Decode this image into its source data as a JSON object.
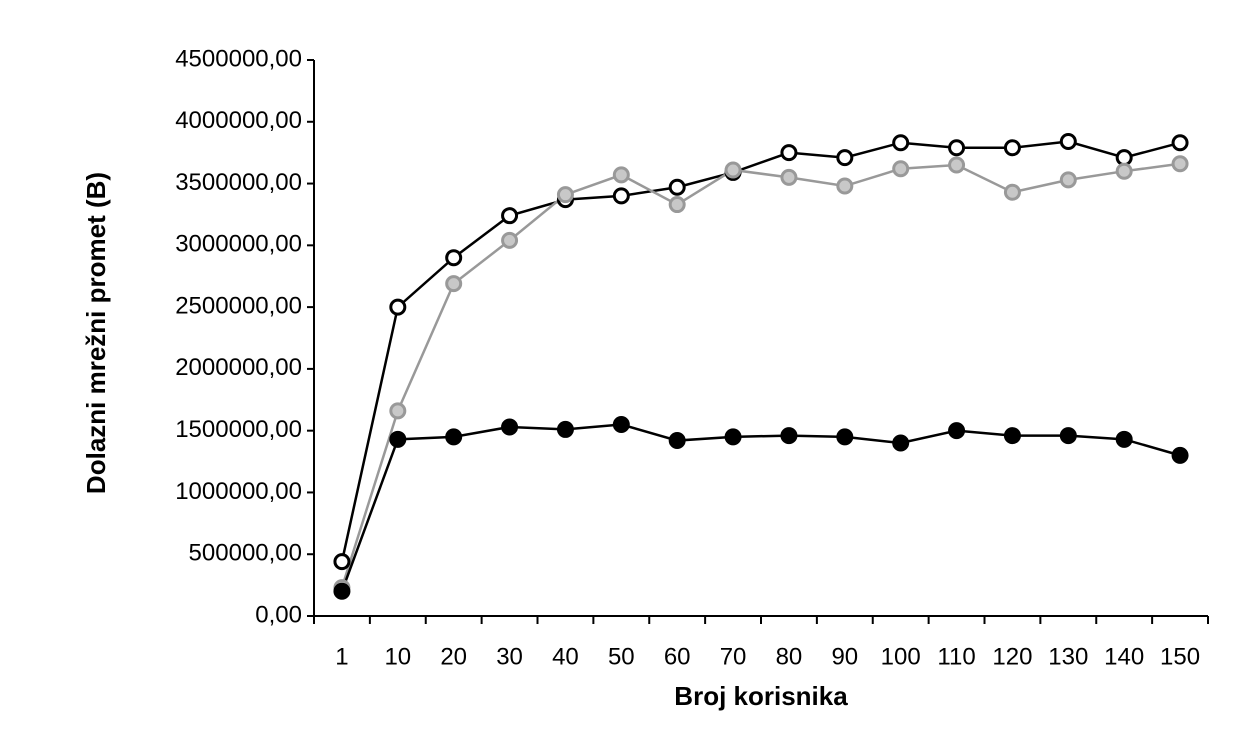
{
  "chart_data": {
    "type": "line",
    "x_label": "Broj korisnika",
    "y_label": "Dolazni mrežni promet (B)",
    "categories": [
      "1",
      "10",
      "20",
      "30",
      "40",
      "50",
      "60",
      "70",
      "80",
      "90",
      "100",
      "110",
      "120",
      "130",
      "140",
      "150"
    ],
    "series": [
      {
        "color": "#000000",
        "marker_fill": "#ffffff",
        "values": [
          440000,
          2500000,
          2900000,
          3240000,
          3370000,
          3400000,
          3470000,
          3590000,
          3750000,
          3710000,
          3830000,
          3790000,
          3790000,
          3840000,
          3710000,
          3830000
        ]
      },
      {
        "color": "#999999",
        "marker_fill": "#c8c8c8",
        "values": [
          230000,
          1660000,
          2690000,
          3040000,
          3410000,
          3570000,
          3330000,
          3610000,
          3550000,
          3480000,
          3620000,
          3650000,
          3430000,
          3530000,
          3600000,
          3660000
        ]
      },
      {
        "color": "#000000",
        "marker_fill": "#000000",
        "values": [
          200000,
          1430000,
          1450000,
          1530000,
          1510000,
          1550000,
          1420000,
          1450000,
          1460000,
          1450000,
          1400000,
          1500000,
          1460000,
          1460000,
          1430000,
          1300000
        ]
      }
    ],
    "ylim": [
      0,
      4500000
    ],
    "yticks": [
      {
        "value": 0,
        "label": "0,00"
      },
      {
        "value": 500000,
        "label": "500000,00"
      },
      {
        "value": 1000000,
        "label": "1000000,00"
      },
      {
        "value": 1500000,
        "label": "1500000,00"
      },
      {
        "value": 2000000,
        "label": "2000000,00"
      },
      {
        "value": 2500000,
        "label": "2500000,00"
      },
      {
        "value": 3000000,
        "label": "3000000,00"
      },
      {
        "value": 3500000,
        "label": "3500000,00"
      },
      {
        "value": 4000000,
        "label": "4000000,00"
      },
      {
        "value": 4500000,
        "label": "4500000,00"
      }
    ],
    "grid": false
  }
}
